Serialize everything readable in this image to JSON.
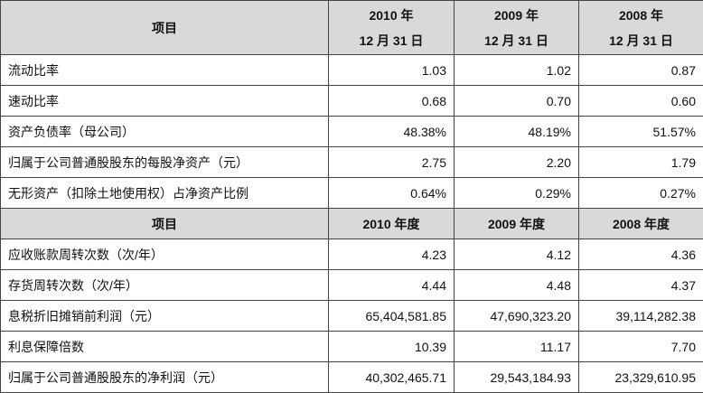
{
  "section1": {
    "header": {
      "item": "项目",
      "years": [
        {
          "year": "2010 年",
          "date": "12 月 31 日"
        },
        {
          "year": "2009 年",
          "date": "12 月 31 日"
        },
        {
          "year": "2008 年",
          "date": "12 月 31 日"
        }
      ]
    },
    "rows": [
      {
        "label": "流动比率",
        "values": [
          "1.03",
          "1.02",
          "0.87"
        ]
      },
      {
        "label": "速动比率",
        "values": [
          "0.68",
          "0.70",
          "0.60"
        ]
      },
      {
        "label": "资产负债率（母公司）",
        "values": [
          "48.38%",
          "48.19%",
          "51.57%"
        ]
      },
      {
        "label": "归属于公司普通股股东的每股净资产（元）",
        "values": [
          "2.75",
          "2.20",
          "1.79"
        ]
      },
      {
        "label": "无形资产（扣除土地使用权）占净资产比例",
        "values": [
          "0.64%",
          "0.29%",
          "0.27%"
        ]
      }
    ]
  },
  "section2": {
    "header": {
      "item": "项目",
      "years": [
        "2010 年度",
        "2009 年度",
        "2008 年度"
      ]
    },
    "rows": [
      {
        "label": "应收账款周转次数（次/年）",
        "values": [
          "4.23",
          "4.12",
          "4.36"
        ]
      },
      {
        "label": "存货周转次数（次/年）",
        "values": [
          "4.44",
          "4.48",
          "4.37"
        ]
      },
      {
        "label": "息税折旧摊销前利润（元）",
        "values": [
          "65,404,581.85",
          "47,690,323.20",
          "39,114,282.38"
        ]
      },
      {
        "label": "利息保障倍数",
        "values": [
          "10.39",
          "11.17",
          "7.70"
        ]
      },
      {
        "label": "归属于公司普通股股东的净利润（元）",
        "values": [
          "40,302,465.71",
          "29,543,184.93",
          "23,329,610.95"
        ]
      }
    ]
  }
}
